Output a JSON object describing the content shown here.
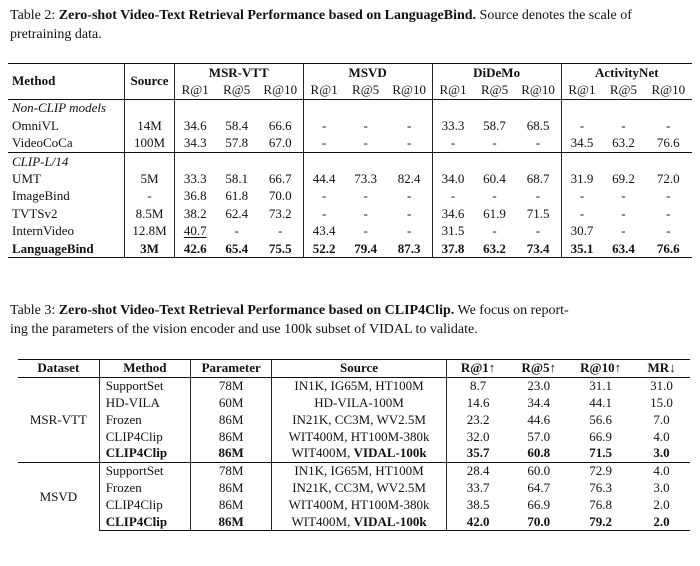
{
  "table2": {
    "label": "Table 2:",
    "title": "Zero-shot Video-Text Retrieval Performance based on LanguageBind.",
    "caption_rest": "Source denotes the scale of pretraining data.",
    "header": {
      "method": "Method",
      "source": "Source",
      "groups": [
        "MSR-VTT",
        "MSVD",
        "DiDeMo",
        "ActivityNet"
      ],
      "metrics": [
        "R@1",
        "R@5",
        "R@10"
      ]
    },
    "sections": [
      {
        "label": "Non-CLIP models",
        "rows": [
          {
            "method": "OmniVL",
            "source": "14M",
            "vals": [
              "34.6",
              "58.4",
              "66.6",
              "-",
              "-",
              "-",
              "33.3",
              "58.7",
              "68.5",
              "-",
              "-",
              "-"
            ]
          },
          {
            "method": "VideoCoCa",
            "source": "100M",
            "vals": [
              "34.3",
              "57.8",
              "67.0",
              "-",
              "-",
              "-",
              "-",
              "-",
              "-",
              "34.5",
              "63.2",
              "76.6"
            ]
          }
        ]
      },
      {
        "label": "CLIP-L/14",
        "rows": [
          {
            "method": "UMT",
            "source": "5M",
            "vals": [
              "33.3",
              "58.1",
              "66.7",
              "44.4",
              "73.3",
              "82.4",
              "34.0",
              "60.4",
              "68.7",
              "31.9",
              "69.2",
              "72.0"
            ]
          },
          {
            "method": "ImageBind",
            "source": "-",
            "vals": [
              "36.8",
              "61.8",
              "70.0",
              "-",
              "-",
              "-",
              "-",
              "-",
              "-",
              "-",
              "-",
              "-"
            ]
          },
          {
            "method": "TVTSv2",
            "source": "8.5M",
            "vals": [
              "38.2",
              "62.4",
              "73.2",
              "-",
              "-",
              "-",
              "34.6",
              "61.9",
              "71.5",
              "-",
              "-",
              "-"
            ]
          },
          {
            "method": "InternVideo",
            "source": "12.8M",
            "vals": [
              "40.7",
              "-",
              "-",
              "43.4",
              "-",
              "-",
              "31.5",
              "-",
              "-",
              "30.7",
              "-",
              "-"
            ]
          },
          {
            "method": "LanguageBind",
            "source": "3M",
            "vals": [
              "42.6",
              "65.4",
              "75.5",
              "52.2",
              "79.4",
              "87.3",
              "37.8",
              "63.2",
              "73.4",
              "35.1",
              "63.4",
              "76.6"
            ]
          }
        ]
      }
    ]
  },
  "table3": {
    "label": "Table 3:",
    "title": "Zero-shot Video-Text Retrieval Performance based on CLIP4Clip.",
    "caption_rest_1": "We focus on report-",
    "caption_rest_2": "ing the parameters of the vision encoder and use 100k subset of VIDAL to validate.",
    "header": [
      "Dataset",
      "Method",
      "Parameter",
      "Source",
      "R@1↑",
      "R@5↑",
      "R@10↑",
      "MR↓"
    ],
    "groups": [
      {
        "dataset": "MSR-VTT",
        "rows": [
          {
            "method": "SupportSet",
            "param": "78M",
            "source_a": "IN1K, IG65M, HT100M",
            "source_b": "",
            "r1": "8.7",
            "r5": "23.0",
            "r10": "31.1",
            "mr": "31.0"
          },
          {
            "method": "HD-VILA",
            "param": "60M",
            "source_a": "HD-VILA-100M",
            "source_b": "",
            "r1": "14.6",
            "r5": "34.4",
            "r10": "44.1",
            "mr": "15.0"
          },
          {
            "method": "Frozen",
            "param": "86M",
            "source_a": "IN21K, CC3M, WV2.5M",
            "source_b": "",
            "r1": "23.2",
            "r5": "44.6",
            "r10": "56.6",
            "mr": "7.0"
          },
          {
            "method": "CLIP4Clip",
            "param": "86M",
            "source_a": "WIT400M, HT100M-380k",
            "source_b": "",
            "r1": "32.0",
            "r5": "57.0",
            "r10": "66.9",
            "mr": "4.0"
          },
          {
            "method": "CLIP4Clip",
            "param": "86M",
            "source_a": "WIT400M, ",
            "source_b": "VIDAL-100k",
            "r1": "35.7",
            "r5": "60.8",
            "r10": "71.5",
            "mr": "3.0"
          }
        ]
      },
      {
        "dataset": "MSVD",
        "rows": [
          {
            "method": "SupportSet",
            "param": "78M",
            "source_a": "IN1K, IG65M, HT100M",
            "source_b": "",
            "r1": "28.4",
            "r5": "60.0",
            "r10": "72.9",
            "mr": "4.0"
          },
          {
            "method": "Frozen",
            "param": "86M",
            "source_a": "IN21K, CC3M, WV2.5M",
            "source_b": "",
            "r1": "33.7",
            "r5": "64.7",
            "r10": "76.3",
            "mr": "3.0"
          },
          {
            "method": "CLIP4Clip",
            "param": "86M",
            "source_a": "WIT400M, HT100M-380k",
            "source_b": "",
            "r1": "38.5",
            "r5": "66.9",
            "r10": "76.8",
            "mr": "2.0"
          },
          {
            "method": "CLIP4Clip",
            "param": "86M",
            "source_a": "WIT400M, ",
            "source_b": "VIDAL-100k",
            "r1": "42.0",
            "r5": "70.0",
            "r10": "79.2",
            "mr": "2.0"
          }
        ]
      }
    ]
  }
}
